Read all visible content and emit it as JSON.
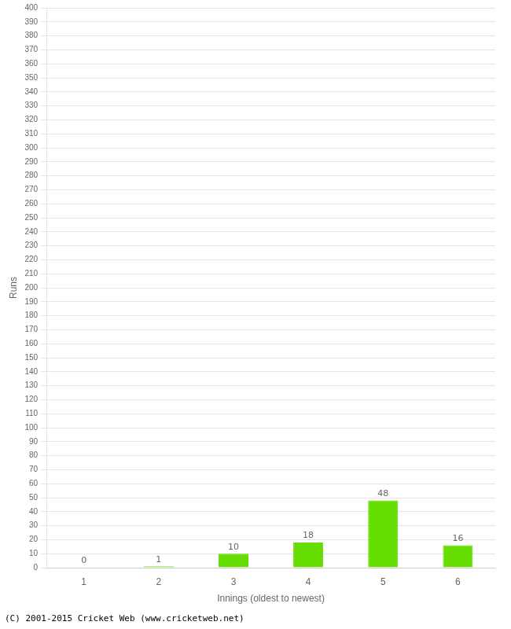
{
  "chart_data": {
    "type": "bar",
    "categories": [
      "1",
      "2",
      "3",
      "4",
      "5",
      "6"
    ],
    "values": [
      0,
      1,
      10,
      18,
      48,
      16
    ],
    "color": "#66dd00",
    "xlabel": "Innings (oldest to newest)",
    "ylabel": "Runs",
    "ylim": [
      0,
      400
    ],
    "yticks": [
      0,
      10,
      20,
      30,
      40,
      50,
      60,
      70,
      80,
      90,
      100,
      110,
      120,
      130,
      140,
      150,
      160,
      170,
      180,
      190,
      200,
      210,
      220,
      230,
      240,
      250,
      260,
      270,
      280,
      290,
      300,
      310,
      320,
      330,
      340,
      350,
      360,
      370,
      380,
      390,
      400
    ],
    "grid": true,
    "data_labels": true,
    "annotations": [
      "(C) 2001-2015 Cricket Web (www.cricketweb.net)"
    ]
  }
}
